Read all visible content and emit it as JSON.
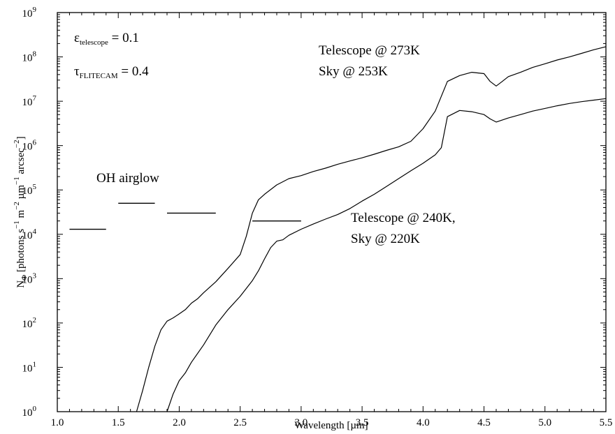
{
  "chart_data": {
    "type": "line",
    "xlabel": "Wavelength [µm]",
    "ylabel": {
      "N": "N",
      "phi": "Φ",
      "body": " [photons s",
      "m": " m",
      "um": " µm",
      "arcsec": " arcsec",
      "close": "]",
      "exp_neg1": "−1",
      "exp_neg2": "−2"
    },
    "x_scale": "linear",
    "y_scale": "log",
    "xlim": [
      1.0,
      5.5
    ],
    "ylim": [
      1,
      1000000000
    ],
    "x_ticks": [
      "1.0",
      "1.5",
      "2.0",
      "2.5",
      "3.0",
      "3.5",
      "4.0",
      "4.5",
      "5.0",
      "5.5"
    ],
    "y_ticks": [
      {
        "base": "10",
        "exp": "0"
      },
      {
        "base": "10",
        "exp": "1"
      },
      {
        "base": "10",
        "exp": "2"
      },
      {
        "base": "10",
        "exp": "3"
      },
      {
        "base": "10",
        "exp": "4"
      },
      {
        "base": "10",
        "exp": "5"
      },
      {
        "base": "10",
        "exp": "6"
      },
      {
        "base": "10",
        "exp": "7"
      },
      {
        "base": "10",
        "exp": "8"
      },
      {
        "base": "10",
        "exp": "9"
      }
    ],
    "grid": false,
    "params": {
      "epsilon": {
        "symbol": "ε",
        "sub": "telescope",
        "rest": " = 0.1"
      },
      "tau": {
        "symbol": "τ",
        "sub": "FLITECAM",
        "rest": " = 0.4"
      }
    },
    "series": [
      {
        "label_lines": [
          "Telescope @ 273K",
          "Sky @ 253K"
        ],
        "points": [
          [
            1.65,
            1
          ],
          [
            1.7,
            3
          ],
          [
            1.75,
            10
          ],
          [
            1.8,
            30
          ],
          [
            1.85,
            70
          ],
          [
            1.9,
            110
          ],
          [
            1.95,
            130
          ],
          [
            2.0,
            160
          ],
          [
            2.05,
            200
          ],
          [
            2.1,
            280
          ],
          [
            2.15,
            350
          ],
          [
            2.2,
            480
          ],
          [
            2.3,
            850
          ],
          [
            2.4,
            1700
          ],
          [
            2.5,
            3500
          ],
          [
            2.55,
            9000
          ],
          [
            2.6,
            30000
          ],
          [
            2.65,
            60000
          ],
          [
            2.7,
            80000
          ],
          [
            2.8,
            130000
          ],
          [
            2.9,
            180000
          ],
          [
            3.0,
            210000
          ],
          [
            3.1,
            260000
          ],
          [
            3.2,
            310000
          ],
          [
            3.3,
            380000
          ],
          [
            3.4,
            450000
          ],
          [
            3.5,
            530000
          ],
          [
            3.6,
            640000
          ],
          [
            3.7,
            780000
          ],
          [
            3.8,
            940000
          ],
          [
            3.9,
            1250000
          ],
          [
            4.0,
            2400000
          ],
          [
            4.1,
            6000000
          ],
          [
            4.2,
            28000000
          ],
          [
            4.3,
            38000000
          ],
          [
            4.4,
            45000000
          ],
          [
            4.5,
            42000000
          ],
          [
            4.55,
            28000000
          ],
          [
            4.6,
            22000000
          ],
          [
            4.65,
            28000000
          ],
          [
            4.7,
            36000000
          ],
          [
            4.8,
            45000000
          ],
          [
            4.9,
            58000000
          ],
          [
            5.0,
            70000000
          ],
          [
            5.1,
            85000000
          ],
          [
            5.2,
            100000000
          ],
          [
            5.3,
            120000000
          ],
          [
            5.4,
            145000000
          ],
          [
            5.5,
            170000000
          ]
        ]
      },
      {
        "label_lines": [
          "Telescope @ 240K,",
          "Sky @ 220K"
        ],
        "points": [
          [
            1.9,
            1
          ],
          [
            1.95,
            2.5
          ],
          [
            2.0,
            5
          ],
          [
            2.05,
            7.5
          ],
          [
            2.1,
            13
          ],
          [
            2.2,
            32
          ],
          [
            2.3,
            90
          ],
          [
            2.4,
            200
          ],
          [
            2.5,
            400
          ],
          [
            2.6,
            900
          ],
          [
            2.65,
            1500
          ],
          [
            2.7,
            2800
          ],
          [
            2.75,
            5000
          ],
          [
            2.8,
            7000
          ],
          [
            2.85,
            7500
          ],
          [
            2.9,
            9500
          ],
          [
            3.0,
            13000
          ],
          [
            3.1,
            17000
          ],
          [
            3.2,
            22000
          ],
          [
            3.3,
            28000
          ],
          [
            3.4,
            38000
          ],
          [
            3.5,
            56000
          ],
          [
            3.6,
            80000
          ],
          [
            3.7,
            120000
          ],
          [
            3.8,
            180000
          ],
          [
            3.9,
            270000
          ],
          [
            4.0,
            400000
          ],
          [
            4.1,
            620000
          ],
          [
            4.15,
            900000
          ],
          [
            4.2,
            4500000
          ],
          [
            4.3,
            6200000
          ],
          [
            4.4,
            5800000
          ],
          [
            4.5,
            5000000
          ],
          [
            4.55,
            4000000
          ],
          [
            4.6,
            3400000
          ],
          [
            4.7,
            4200000
          ],
          [
            4.8,
            5000000
          ],
          [
            4.9,
            6000000
          ],
          [
            5.0,
            6900000
          ],
          [
            5.1,
            7900000
          ],
          [
            5.2,
            8900000
          ],
          [
            5.3,
            9800000
          ],
          [
            5.4,
            10600000
          ],
          [
            5.5,
            11500000
          ]
        ]
      }
    ],
    "oh_airglow": {
      "label": "OH airglow",
      "segments": [
        {
          "x1": 1.1,
          "x2": 1.4,
          "y": 13000
        },
        {
          "x1": 1.5,
          "x2": 1.8,
          "y": 50000
        },
        {
          "x1": 1.9,
          "x2": 2.3,
          "y": 30000
        },
        {
          "x1": 2.6,
          "x2": 3.0,
          "y": 20000
        }
      ]
    }
  }
}
